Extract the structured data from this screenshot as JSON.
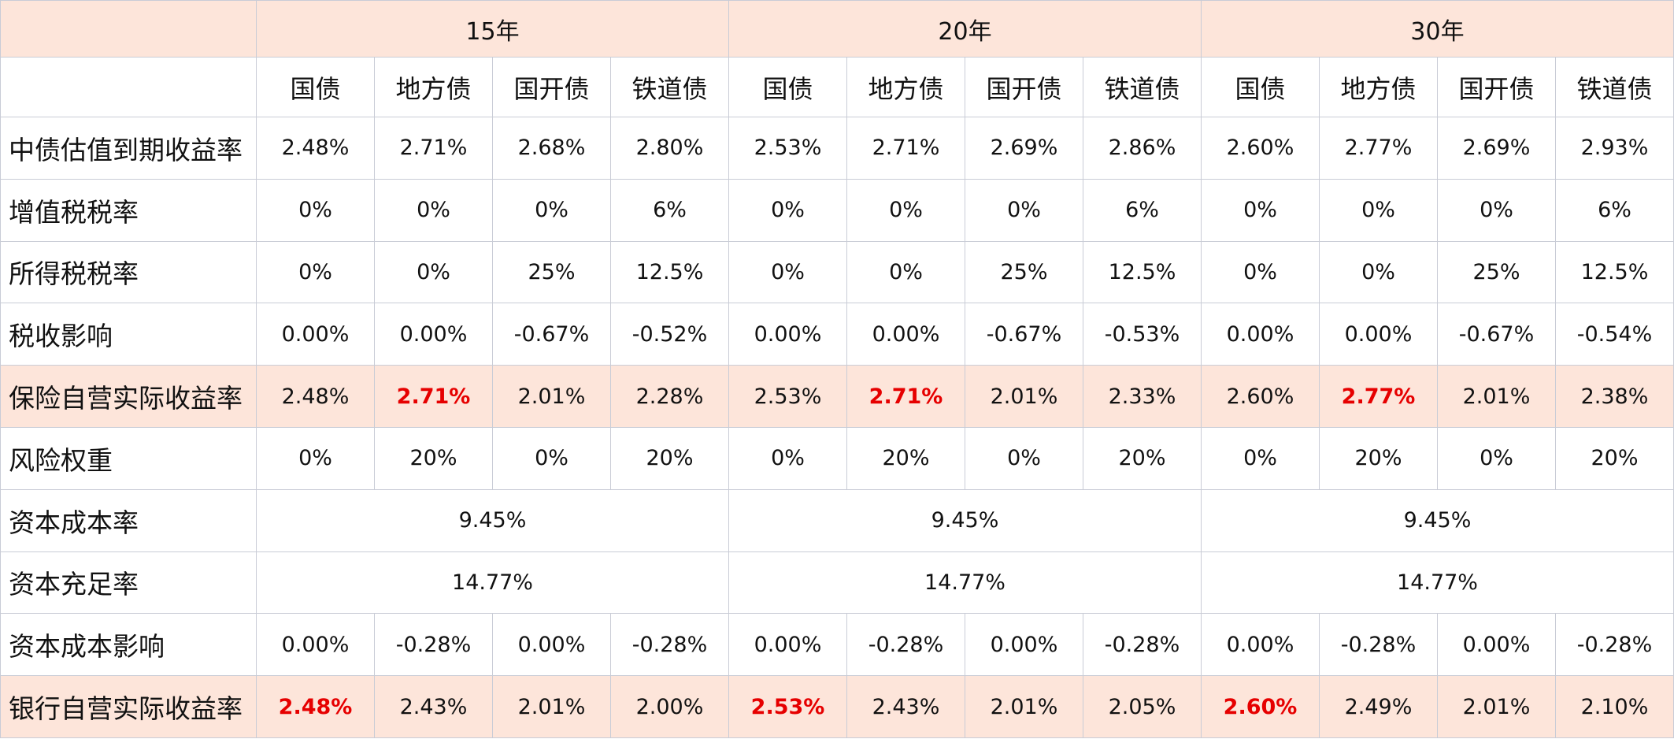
{
  "table": {
    "groups": [
      {
        "title": "15年",
        "columns": [
          "国债",
          "地方债",
          "国开债",
          "铁道债"
        ]
      },
      {
        "title": "20年",
        "columns": [
          "国债",
          "地方债",
          "国开债",
          "铁道债"
        ]
      },
      {
        "title": "30年",
        "columns": [
          "国债",
          "地方债",
          "国开债",
          "铁道债"
        ]
      }
    ],
    "rows": [
      {
        "label": "中债估值到期收益率",
        "cells": [
          "2.48%",
          "2.71%",
          "2.68%",
          "2.80%",
          "2.53%",
          "2.71%",
          "2.69%",
          "2.86%",
          "2.60%",
          "2.77%",
          "2.69%",
          "2.93%"
        ]
      },
      {
        "label": "增值税税率",
        "cells": [
          "0%",
          "0%",
          "0%",
          "6%",
          "0%",
          "0%",
          "0%",
          "6%",
          "0%",
          "0%",
          "0%",
          "6%"
        ]
      },
      {
        "label": "所得税税率",
        "cells": [
          "0%",
          "0%",
          "25%",
          "12.5%",
          "0%",
          "0%",
          "25%",
          "12.5%",
          "0%",
          "0%",
          "25%",
          "12.5%"
        ]
      },
      {
        "label": "税收影响",
        "cells": [
          "0.00%",
          "0.00%",
          "-0.67%",
          "-0.52%",
          "0.00%",
          "0.00%",
          "-0.67%",
          "-0.53%",
          "0.00%",
          "0.00%",
          "-0.67%",
          "-0.54%"
        ]
      },
      {
        "label": "保险自营实际收益率",
        "shaded": true,
        "red": [
          1,
          5,
          9
        ],
        "cells": [
          "2.48%",
          "2.71%",
          "2.01%",
          "2.28%",
          "2.53%",
          "2.71%",
          "2.01%",
          "2.33%",
          "2.60%",
          "2.77%",
          "2.01%",
          "2.38%"
        ]
      },
      {
        "label": "风险权重",
        "cells": [
          "0%",
          "20%",
          "0%",
          "20%",
          "0%",
          "20%",
          "0%",
          "20%",
          "0%",
          "20%",
          "0%",
          "20%"
        ]
      },
      {
        "label": "资本成本率",
        "cells": [
          "9.45%",
          "9.45%",
          "9.45%"
        ]
      },
      {
        "label": "资本充足率",
        "cells": [
          "14.77%",
          "14.77%",
          "14.77%"
        ]
      },
      {
        "label": "资本成本影响",
        "cells": [
          "0.00%",
          "-0.28%",
          "0.00%",
          "-0.28%",
          "0.00%",
          "-0.28%",
          "0.00%",
          "-0.28%",
          "0.00%",
          "-0.28%",
          "0.00%",
          "-0.28%"
        ]
      },
      {
        "label": "银行自营实际收益率",
        "shaded": true,
        "red": [
          0,
          4,
          8
        ],
        "cells": [
          "2.48%",
          "2.43%",
          "2.01%",
          "2.00%",
          "2.53%",
          "2.43%",
          "2.01%",
          "2.05%",
          "2.60%",
          "2.49%",
          "2.01%",
          "2.10%"
        ]
      }
    ]
  }
}
